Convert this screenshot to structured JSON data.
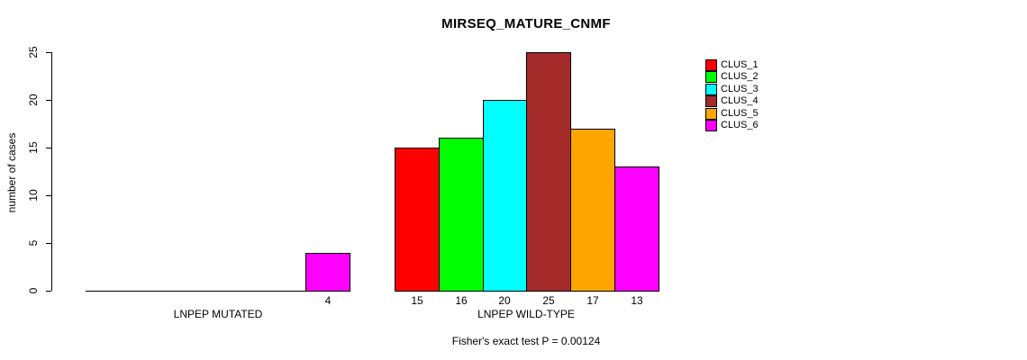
{
  "page": {
    "background": "#FFFFFF",
    "text_color": "#000000",
    "axis_color": "#000000"
  },
  "chart_data": {
    "type": "bar",
    "title": "MIRSEQ_MATURE_CNMF",
    "xlabel": "",
    "ylabel": "number of cases",
    "ylim": [
      0,
      25
    ],
    "yticks": [
      0,
      5,
      10,
      15,
      20,
      25
    ],
    "categories": [
      "LNPEP MUTATED",
      "LNPEP WILD-TYPE"
    ],
    "series": [
      {
        "name": "CLUS_1",
        "color": "#FF0000",
        "values": [
          0,
          15
        ]
      },
      {
        "name": "CLUS_2",
        "color": "#00FF00",
        "values": [
          0,
          16
        ]
      },
      {
        "name": "CLUS_3",
        "color": "#00FFFF",
        "values": [
          0,
          20
        ]
      },
      {
        "name": "CLUS_4",
        "color": "#A52A2A",
        "values": [
          0,
          25
        ]
      },
      {
        "name": "CLUS_5",
        "color": "#FFA500",
        "values": [
          0,
          17
        ]
      },
      {
        "name": "CLUS_6",
        "color": "#FF00FF",
        "values": [
          4,
          13
        ]
      }
    ],
    "bar_value_labels": {
      "LNPEP MUTATED": [
        null,
        null,
        null,
        null,
        null,
        4
      ],
      "LNPEP WILD-TYPE": [
        15,
        16,
        20,
        25,
        17,
        13
      ]
    },
    "annotation": "Fisher's exact test P = 0.00124",
    "legend_position": "top-right",
    "grid": false
  }
}
